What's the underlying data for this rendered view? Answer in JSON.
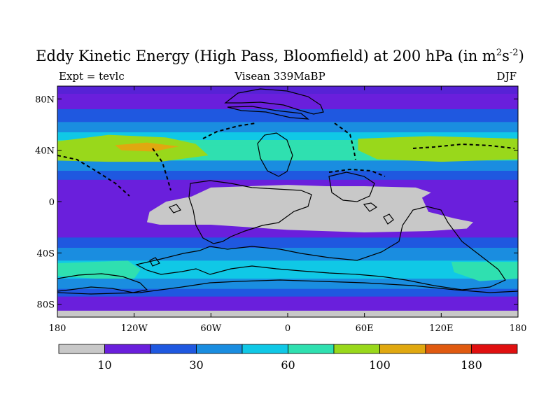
{
  "title": {
    "main": "Eddy Kinetic Energy (High Pass, Bloomfield) at 200 hPa (in m",
    "sup1": "2",
    "mid": "s",
    "sup2": "-2",
    "end": ")"
  },
  "subtitle": {
    "left": "Expt = tevlc",
    "center": "Visean 339MaBP",
    "right": "DJF"
  },
  "map": {
    "lon_range": [
      -180,
      180
    ],
    "lat_range": [
      -90,
      90
    ],
    "lat_ticks": [
      {
        "value": 80,
        "label": "80N"
      },
      {
        "value": 40,
        "label": "40N"
      },
      {
        "value": 0,
        "label": "0"
      },
      {
        "value": -40,
        "label": "40S"
      },
      {
        "value": -80,
        "label": "80S"
      }
    ],
    "lon_ticks": [
      {
        "value": -180,
        "label": "180"
      },
      {
        "value": -120,
        "label": "120W"
      },
      {
        "value": -60,
        "label": "60W"
      },
      {
        "value": 0,
        "label": "0"
      },
      {
        "value": 60,
        "label": "60E"
      },
      {
        "value": 120,
        "label": "120E"
      },
      {
        "value": 180,
        "label": "180"
      }
    ],
    "bands": [
      {
        "lat_top": 90,
        "lat_bottom": 84,
        "color": "#5722d6"
      },
      {
        "lat_top": 84,
        "lat_bottom": 72,
        "color": "#6a1fdc"
      },
      {
        "lat_top": 72,
        "lat_bottom": 62,
        "color": "#1f58e0"
      },
      {
        "lat_top": 62,
        "lat_bottom": 54,
        "color": "#1a8de0"
      },
      {
        "lat_top": 54,
        "lat_bottom": 48,
        "color": "#10c8e6"
      },
      {
        "lat_top": 48,
        "lat_bottom": 44,
        "color": "#2fe0b0"
      },
      {
        "lat_top": 44,
        "lat_bottom": 32,
        "color": "#2fe0b0"
      },
      {
        "lat_top": 32,
        "lat_bottom": 24,
        "color": "#1a8de0"
      },
      {
        "lat_top": 24,
        "lat_bottom": 17,
        "color": "#1f58e0"
      },
      {
        "lat_top": 17,
        "lat_bottom": -28,
        "color": "#6a1fdc"
      },
      {
        "lat_top": -28,
        "lat_bottom": -36,
        "color": "#1f58e0"
      },
      {
        "lat_top": -36,
        "lat_bottom": -46,
        "color": "#1a8de0"
      },
      {
        "lat_top": -46,
        "lat_bottom": -60,
        "color": "#10c8e6"
      },
      {
        "lat_top": -60,
        "lat_bottom": -68,
        "color": "#1a8de0"
      },
      {
        "lat_top": -68,
        "lat_bottom": -74,
        "color": "#1f58e0"
      },
      {
        "lat_top": -74,
        "lat_bottom": -85,
        "color": "#6a1fdc"
      },
      {
        "lat_top": -85,
        "lat_bottom": -90,
        "color": "#c8c8c8"
      }
    ],
    "regions": [
      {
        "name": "nh-jet-green-west",
        "color": "#99d81b",
        "points": [
          [
            -180,
            47
          ],
          [
            -140,
            52
          ],
          [
            -95,
            50
          ],
          [
            -72,
            45
          ],
          [
            -62,
            36
          ],
          [
            -100,
            31
          ],
          [
            -140,
            31
          ],
          [
            -180,
            32
          ]
        ]
      },
      {
        "name": "nh-jet-green-east",
        "color": "#99d81b",
        "points": [
          [
            55,
            49
          ],
          [
            110,
            51
          ],
          [
            180,
            49
          ],
          [
            180,
            33
          ],
          [
            120,
            31
          ],
          [
            70,
            33
          ],
          [
            55,
            40
          ]
        ]
      },
      {
        "name": "nh-jet-max",
        "color": "#e0a810",
        "points": [
          [
            -135,
            44
          ],
          [
            -110,
            46
          ],
          [
            -85,
            43
          ],
          [
            -105,
            39
          ],
          [
            -130,
            40
          ]
        ]
      },
      {
        "name": "sh-storm-track-west",
        "color": "#2fe0b0",
        "points": [
          [
            -180,
            -48
          ],
          [
            -125,
            -46
          ],
          [
            -115,
            -53
          ],
          [
            -120,
            -60
          ],
          [
            -150,
            -60
          ],
          [
            -180,
            -58
          ]
        ]
      },
      {
        "name": "sh-storm-track-east",
        "color": "#2fe0b0",
        "points": [
          [
            128,
            -47
          ],
          [
            180,
            -47
          ],
          [
            180,
            -60
          ],
          [
            150,
            -62
          ],
          [
            130,
            -55
          ]
        ]
      },
      {
        "name": "tropical-min-gray",
        "color": "#c8c8c8",
        "points": [
          [
            -110,
            -16
          ],
          [
            -108,
            -8
          ],
          [
            -95,
            0
          ],
          [
            -75,
            4
          ],
          [
            -60,
            11
          ],
          [
            -30,
            12
          ],
          [
            0,
            13
          ],
          [
            30,
            12
          ],
          [
            60,
            12
          ],
          [
            100,
            11
          ],
          [
            112,
            7
          ],
          [
            105,
            3
          ],
          [
            110,
            -8
          ],
          [
            130,
            -13
          ],
          [
            145,
            -16
          ],
          [
            140,
            -21
          ],
          [
            110,
            -23
          ],
          [
            60,
            -24
          ],
          [
            0,
            -22
          ],
          [
            -60,
            -18
          ],
          [
            -100,
            -18
          ]
        ]
      }
    ],
    "coast_outline_color": "#000000"
  },
  "colorbar": {
    "colors": [
      "#c8c8c8",
      "#6a1fdc",
      "#1f58e0",
      "#1a8de0",
      "#10c8e6",
      "#2fe0b0",
      "#99d81b",
      "#e0a810",
      "#e05a10",
      "#e01010"
    ],
    "labels": [
      {
        "boundary": 1,
        "text": "10"
      },
      {
        "boundary": 3,
        "text": "30"
      },
      {
        "boundary": 5,
        "text": "60"
      },
      {
        "boundary": 7,
        "text": "100"
      },
      {
        "boundary": 9,
        "text": "180"
      }
    ]
  }
}
